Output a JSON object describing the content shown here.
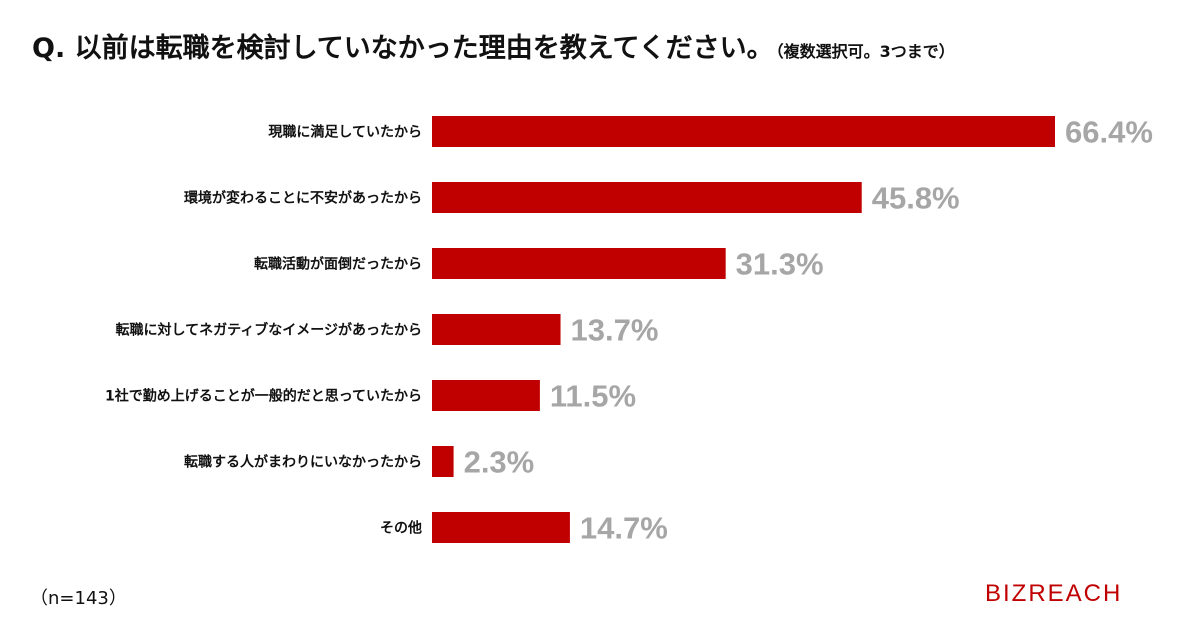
{
  "title": "Q. 以前は転職を検討していなかった理由を教えてください。",
  "subtitle": "（複数選択可。3つまで）",
  "sample_size": "（n=143）",
  "brand": "BIZREACH",
  "colors": {
    "bar": "#c00000",
    "value_label": "#a6a6a6",
    "text": "#111111"
  },
  "chart_data": {
    "type": "bar",
    "orientation": "horizontal",
    "categories": [
      "現職に満足していたから",
      "環境が変わることに不安があったから",
      "転職活動が面倒だったから",
      "転職に対してネガティブなイメージがあったから",
      "1社で勤め上げることが一般的だと思っていたから",
      "転職する人がまわりにいなかったから",
      "その他"
    ],
    "values": [
      66.4,
      45.8,
      31.3,
      13.7,
      11.5,
      2.3,
      14.7
    ],
    "value_labels": [
      "66.4%",
      "45.8%",
      "31.3%",
      "13.7%",
      "11.5%",
      "2.3%",
      "14.7%"
    ],
    "unit": "%",
    "xlim": [
      0,
      66.4
    ],
    "grid": false,
    "legend": "none"
  }
}
